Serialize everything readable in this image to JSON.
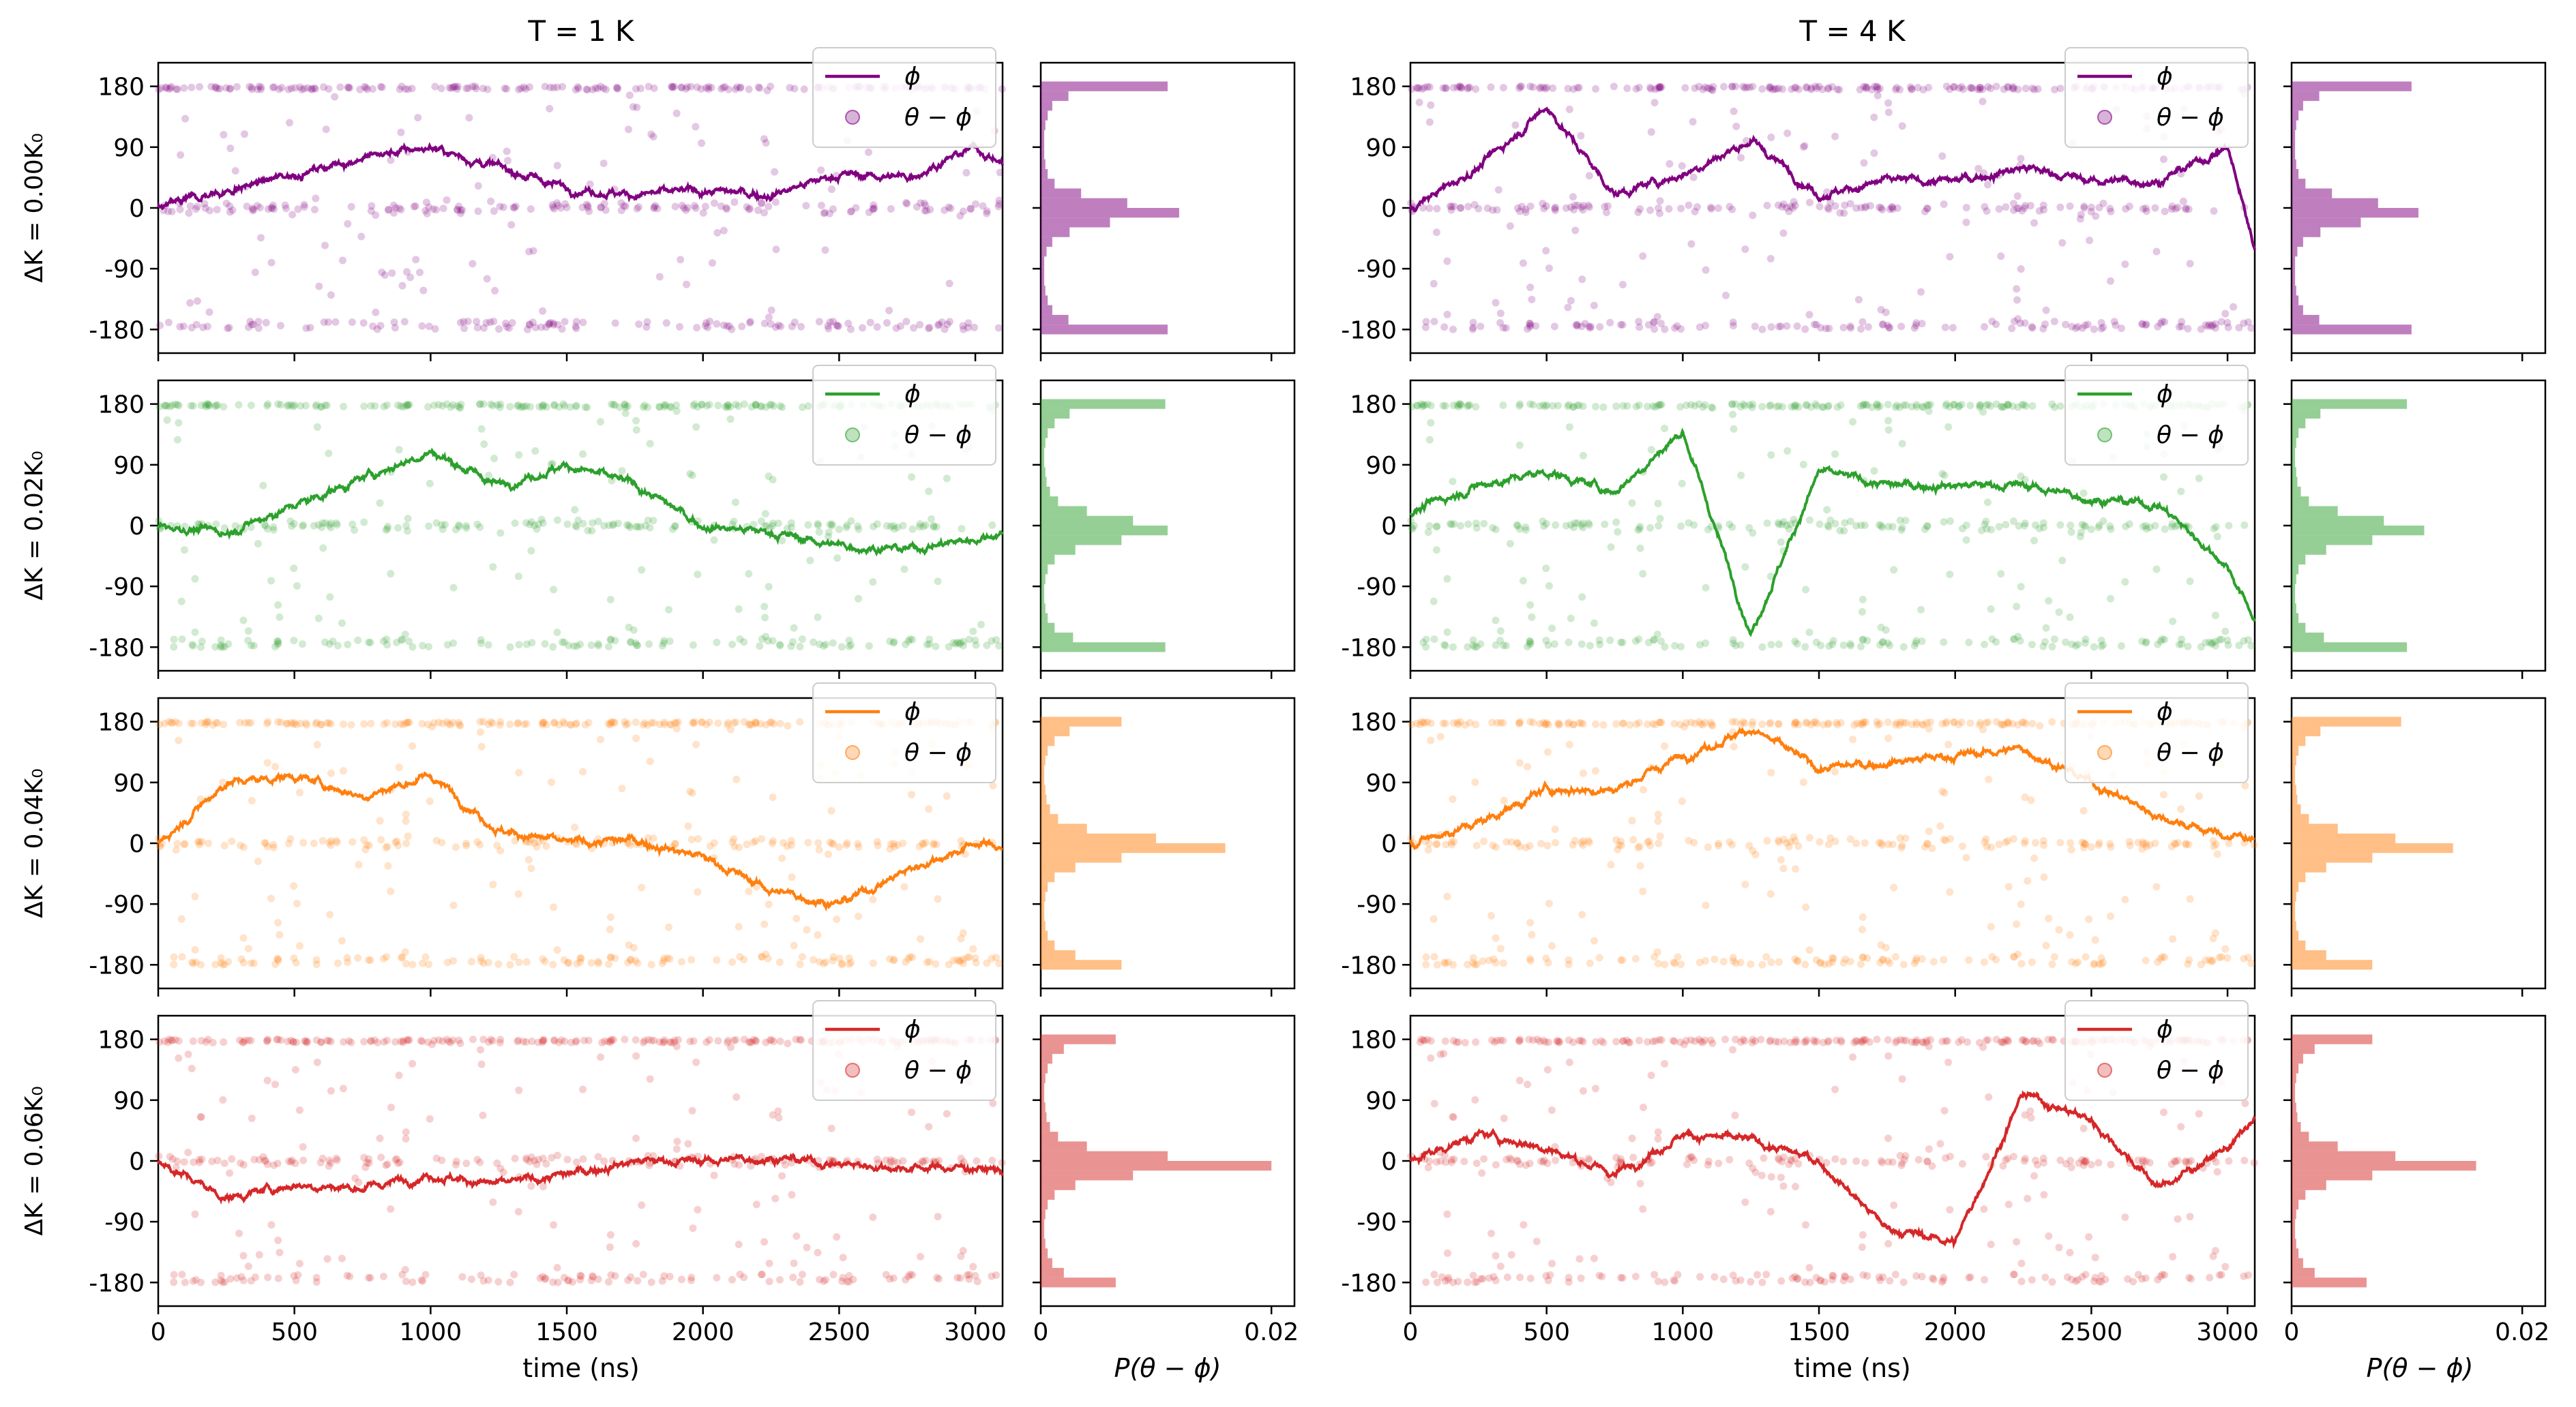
{
  "titles": [
    "T = 1 K",
    "T = 4 K"
  ],
  "xlabel_time": "time (ns)",
  "xlabel_hist": "P(θ − ϕ)",
  "hist_xlim": [
    0,
    0.022
  ],
  "hist_xticks": [
    0,
    0.02
  ],
  "time_xlim": [
    0,
    3100
  ],
  "time_xticks": [
    0,
    500,
    1000,
    1500,
    2000,
    2500,
    3000
  ],
  "ylim": [
    -215,
    215
  ],
  "yticks": [
    180,
    90,
    0,
    -90,
    -180
  ],
  "legend": {
    "phi": "ϕ",
    "theta_minus_phi": "θ − ϕ"
  },
  "chart_data": {
    "type": "line",
    "rows": [
      {
        "label": "ΔK = 0.00K₀",
        "color": "#800080",
        "hist": [
          0.011,
          0.0024,
          0.001,
          0.0006,
          0.0004,
          0.0003,
          0.0003,
          0.0003,
          0.0004,
          0.0006,
          0.0012,
          0.0035,
          0.0075,
          0.012,
          0.006,
          0.0025,
          0.001,
          0.0005,
          0.0003,
          0.0003,
          0.0003,
          0.0004,
          0.0006,
          0.001,
          0.0024,
          0.011
        ]
      },
      {
        "label": "ΔK = 0.02K₀",
        "color": "#2ca02c",
        "hist": [
          0.0108,
          0.0025,
          0.0012,
          0.0006,
          0.0004,
          0.0003,
          0.0003,
          0.0004,
          0.0005,
          0.0008,
          0.0015,
          0.004,
          0.008,
          0.011,
          0.007,
          0.003,
          0.0012,
          0.0006,
          0.0004,
          0.0003,
          0.0003,
          0.0004,
          0.0006,
          0.0012,
          0.0028,
          0.0108
        ]
      },
      {
        "label": "ΔK = 0.04K₀",
        "color": "#ff7f0e",
        "hist": [
          0.007,
          0.0025,
          0.0012,
          0.0006,
          0.0004,
          0.0003,
          0.0003,
          0.0004,
          0.0005,
          0.0008,
          0.0015,
          0.004,
          0.01,
          0.016,
          0.007,
          0.003,
          0.0012,
          0.0006,
          0.0004,
          0.0003,
          0.0003,
          0.0004,
          0.0006,
          0.0012,
          0.003,
          0.007
        ]
      },
      {
        "label": "ΔK = 0.06K₀",
        "color": "#d62728",
        "hist": [
          0.0065,
          0.002,
          0.001,
          0.0006,
          0.0004,
          0.0003,
          0.0003,
          0.0004,
          0.0005,
          0.0008,
          0.0015,
          0.004,
          0.011,
          0.02,
          0.008,
          0.003,
          0.0012,
          0.0006,
          0.0004,
          0.0003,
          0.0003,
          0.0004,
          0.0006,
          0.001,
          0.002,
          0.0065
        ]
      }
    ],
    "hist_right": [
      [
        0.0104,
        0.0024,
        0.001,
        0.0006,
        0.0004,
        0.0003,
        0.0003,
        0.0003,
        0.0004,
        0.0006,
        0.0012,
        0.0035,
        0.0075,
        0.011,
        0.006,
        0.0025,
        0.001,
        0.0005,
        0.0003,
        0.0003,
        0.0003,
        0.0004,
        0.0006,
        0.001,
        0.0024,
        0.0104
      ],
      [
        0.01,
        0.0025,
        0.0012,
        0.0006,
        0.0004,
        0.0003,
        0.0003,
        0.0004,
        0.0005,
        0.0008,
        0.0015,
        0.004,
        0.008,
        0.0115,
        0.007,
        0.003,
        0.0012,
        0.0006,
        0.0004,
        0.0003,
        0.0003,
        0.0004,
        0.0006,
        0.0012,
        0.0028,
        0.01
      ],
      [
        0.0095,
        0.0025,
        0.0012,
        0.0006,
        0.0004,
        0.0003,
        0.0003,
        0.0004,
        0.0005,
        0.0008,
        0.0015,
        0.004,
        0.009,
        0.014,
        0.007,
        0.003,
        0.0012,
        0.0006,
        0.0004,
        0.0003,
        0.0003,
        0.0004,
        0.0006,
        0.0012,
        0.003,
        0.007
      ]
    ],
    "hist_right_last": [
      0.007,
      0.002,
      0.001,
      0.0006,
      0.0004,
      0.0003,
      0.0003,
      0.0004,
      0.0005,
      0.0008,
      0.0015,
      0.004,
      0.009,
      0.016,
      0.007,
      0.003,
      0.0012,
      0.0006,
      0.0004,
      0.0003,
      0.0003,
      0.0004,
      0.0006,
      0.001,
      0.002,
      0.0065
    ],
    "phi_keypoints": {
      "t": [
        0,
        250,
        500,
        750,
        1000,
        1250,
        1500,
        1750,
        2000,
        2250,
        2500,
        2750,
        3000,
        3100
      ],
      "T1": [
        [
          0,
          25,
          50,
          75,
          90,
          60,
          30,
          20,
          25,
          20,
          50,
          45,
          90,
          65
        ],
        [
          0,
          -10,
          30,
          70,
          110,
          60,
          90,
          60,
          0,
          -10,
          -30,
          -35,
          -20,
          -10
        ],
        [
          0,
          90,
          100,
          70,
          100,
          20,
          0,
          5,
          -20,
          -70,
          -90,
          -40,
          0,
          -5
        ],
        [
          0,
          -55,
          -35,
          -40,
          -20,
          -35,
          -20,
          0,
          0,
          5,
          -5,
          -10,
          -10,
          -15
        ]
      ],
      "T2": [
        [
          0,
          60,
          150,
          20,
          50,
          100,
          20,
          40,
          40,
          60,
          40,
          40,
          90,
          -60
        ],
        [
          20,
          60,
          80,
          50,
          140,
          -160,
          80,
          60,
          60,
          60,
          40,
          30,
          -60,
          -140
        ],
        [
          0,
          30,
          80,
          80,
          130,
          170,
          110,
          120,
          130,
          140,
          90,
          40,
          10,
          10
        ],
        [
          0,
          40,
          20,
          -20,
          40,
          30,
          0,
          -100,
          -120,
          100,
          60,
          -40,
          20,
          60
        ]
      ]
    }
  }
}
